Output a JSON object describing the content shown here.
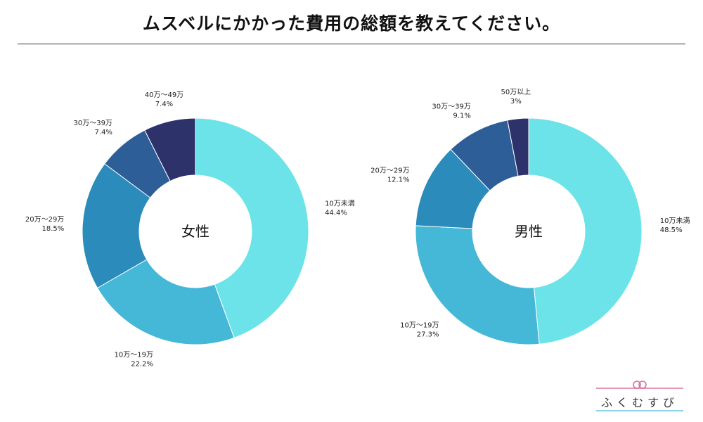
{
  "title": "ムスベルにかかった費用の総額を教えてください。",
  "logo_text": "ふくむすび",
  "chart_data": [
    {
      "type": "pie",
      "center_label": "女性",
      "slices": [
        {
          "label": "10万未満",
          "value": 44.4,
          "value_label": "44.4%",
          "color": "#6be3e8"
        },
        {
          "label": "10万〜19万",
          "value": 22.2,
          "value_label": "22.2%",
          "color": "#45b8d7"
        },
        {
          "label": "20万〜29万",
          "value": 18.5,
          "value_label": "18.5%",
          "color": "#2b8bbb"
        },
        {
          "label": "30万〜39万",
          "value": 7.4,
          "value_label": "7.4%",
          "color": "#2d5e97"
        },
        {
          "label": "40万〜49万",
          "value": 7.4,
          "value_label": "7.4%",
          "color": "#2e326a"
        }
      ]
    },
    {
      "type": "pie",
      "center_label": "男性",
      "slices": [
        {
          "label": "10万未満",
          "value": 48.5,
          "value_label": "48.5%",
          "color": "#6be3e8"
        },
        {
          "label": "10万〜19万",
          "value": 27.3,
          "value_label": "27.3%",
          "color": "#45b8d7"
        },
        {
          "label": "20万〜29万",
          "value": 12.1,
          "value_label": "12.1%",
          "color": "#2b8bbb"
        },
        {
          "label": "30万〜39万",
          "value": 9.1,
          "value_label": "9.1%",
          "color": "#2d5e97"
        },
        {
          "label": "50万以上",
          "value": 3,
          "value_label": "3%",
          "color": "#2e326a"
        }
      ]
    }
  ]
}
